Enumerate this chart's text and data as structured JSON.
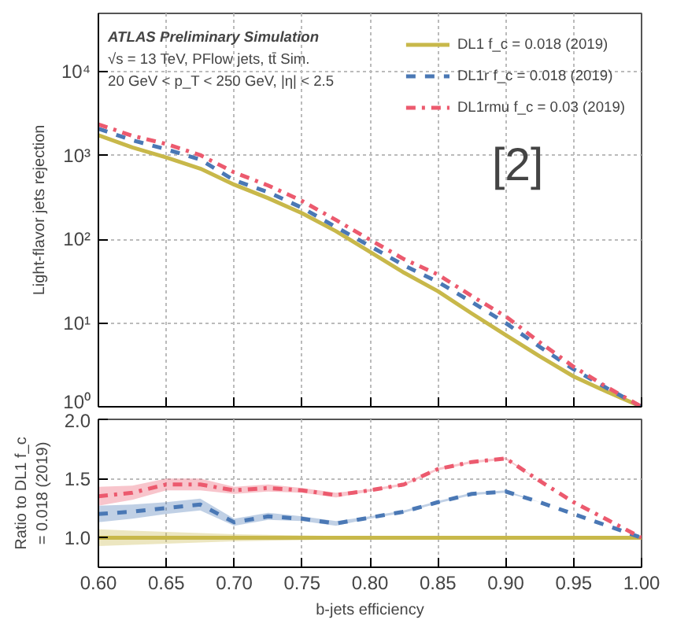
{
  "chart_data": [
    {
      "type": "line",
      "ylabel": "Light-flavor jets rejection",
      "log": "y",
      "grid": true,
      "legend": "top right",
      "tick_labels": "y",
      "x": [
        0.6,
        0.625,
        0.65,
        0.675,
        0.7,
        0.725,
        0.75,
        0.775,
        0.8,
        0.825,
        0.85,
        0.875,
        0.9,
        0.925,
        0.95,
        0.975,
        1.0
      ],
      "xlim": [
        0.6,
        1.0
      ],
      "xticks": [
        {
          "value": 0.6,
          "label": null
        },
        {
          "value": 0.65,
          "label": null
        },
        {
          "value": 0.7,
          "label": null
        },
        {
          "value": 0.75,
          "label": null
        },
        {
          "value": 0.8,
          "label": null
        },
        {
          "value": 0.85,
          "label": null
        },
        {
          "value": 0.9,
          "label": null
        },
        {
          "value": 0.95,
          "label": null
        },
        {
          "value": 1.0,
          "label": null
        }
      ],
      "ylim": [
        1,
        50000
      ],
      "yticks": [
        {
          "value": 1,
          "label": "10⁰"
        },
        {
          "value": 10,
          "label": "10¹"
        },
        {
          "value": 100,
          "label": "10²"
        },
        {
          "value": 1000,
          "label": "10³"
        },
        {
          "value": 10000,
          "label": "10⁴"
        }
      ],
      "annotations": [
        "ATLAS Preliminary Simulation",
        "√s = 13 TeV, PFlow jets, tt̄ Sim.",
        "20 GeV < p_T < 250 GeV, |η| < 2.5",
        "[2]"
      ],
      "series": [
        {
          "name": "DL1 f_c = 0.018 (2019)",
          "color": "#c8b84a",
          "line_style": "solid",
          "values": [
            1750,
            1250,
            950,
            700,
            450,
            310,
            205,
            125,
            71,
            40,
            24,
            13,
            7.2,
            4,
            2.3,
            1.5,
            1.0
          ]
        },
        {
          "name": "DL1r f_c = 0.018 (2019)",
          "color": "#4a78b5",
          "line_style": "dashed",
          "values": [
            2100,
            1525,
            1188,
            896,
            509,
            366,
            238,
            140,
            83,
            49,
            31,
            17.8,
            10,
            5.2,
            2.8,
            1.65,
            1.0
          ]
        },
        {
          "name": "DL1rmu f_c = 0.03 (2019)",
          "color": "#ec5a6e",
          "line_style": "dashdot",
          "values": [
            2363,
            1725,
            1378,
            1015,
            630,
            440,
            287,
            170,
            99,
            58,
            38,
            21,
            12,
            5.9,
            3.0,
            1.7,
            1.0
          ]
        }
      ]
    },
    {
      "type": "line",
      "ylabel": "Ratio to DL1 f_c = 0.018 (2019)",
      "xlabel": "b-jets efficiency",
      "grid": true,
      "x": [
        0.6,
        0.625,
        0.65,
        0.675,
        0.7,
        0.725,
        0.75,
        0.775,
        0.8,
        0.825,
        0.85,
        0.875,
        0.9,
        0.925,
        0.95,
        0.975,
        1.0
      ],
      "xlim": [
        0.6,
        1.0
      ],
      "xticks": [
        {
          "value": 0.6,
          "label": "0.60"
        },
        {
          "value": 0.65,
          "label": "0.65"
        },
        {
          "value": 0.7,
          "label": "0.70"
        },
        {
          "value": 0.75,
          "label": "0.75"
        },
        {
          "value": 0.8,
          "label": "0.80"
        },
        {
          "value": 0.85,
          "label": "0.85"
        },
        {
          "value": 0.9,
          "label": "0.90"
        },
        {
          "value": 0.95,
          "label": "0.95"
        },
        {
          "value": 1.0,
          "label": "1.00"
        }
      ],
      "ylim": [
        0.75,
        2.0
      ],
      "yticks": [
        {
          "value": 1.0,
          "label": "1.0"
        },
        {
          "value": 1.5,
          "label": "1.5"
        },
        {
          "value": 2.0,
          "label": "2.0"
        }
      ],
      "series": [
        {
          "color": "#c8b84a",
          "line_style": "solid",
          "values": [
            1,
            1,
            1,
            1,
            1,
            1,
            1,
            1,
            1,
            1,
            1,
            1,
            1,
            1,
            1,
            1,
            1
          ],
          "lower": [
            0.93,
            0.94,
            0.95,
            0.96,
            0.97,
            0.975,
            0.98,
            0.985,
            0.99,
            0.99,
            0.995,
            0.995,
            0.995,
            1,
            1,
            1,
            1
          ],
          "upper": [
            1.07,
            1.06,
            1.05,
            1.04,
            1.03,
            1.025,
            1.02,
            1.015,
            1.01,
            1.01,
            1.005,
            1.005,
            1.005,
            1,
            1,
            1,
            1
          ]
        },
        {
          "color": "#4a78b5",
          "line_style": "dashed",
          "values": [
            1.2,
            1.22,
            1.25,
            1.28,
            1.13,
            1.18,
            1.16,
            1.12,
            1.17,
            1.22,
            1.3,
            1.37,
            1.39,
            1.3,
            1.2,
            1.1,
            1.0
          ],
          "lower": [
            1.13,
            1.16,
            1.2,
            1.23,
            1.1,
            1.15,
            1.14,
            1.1,
            1.16,
            1.21,
            1.29,
            1.36,
            1.38,
            1.3,
            1.2,
            1.1,
            1.0
          ],
          "upper": [
            1.27,
            1.28,
            1.3,
            1.33,
            1.16,
            1.21,
            1.18,
            1.14,
            1.18,
            1.23,
            1.31,
            1.38,
            1.4,
            1.3,
            1.2,
            1.1,
            1.0
          ]
        },
        {
          "color": "#ec5a6e",
          "line_style": "dashdot",
          "values": [
            1.35,
            1.38,
            1.45,
            1.45,
            1.4,
            1.42,
            1.4,
            1.36,
            1.4,
            1.45,
            1.58,
            1.64,
            1.67,
            1.48,
            1.3,
            1.15,
            1.0
          ],
          "lower": [
            1.27,
            1.32,
            1.4,
            1.4,
            1.37,
            1.39,
            1.38,
            1.34,
            1.39,
            1.44,
            1.57,
            1.63,
            1.66,
            1.48,
            1.3,
            1.15,
            1.0
          ],
          "upper": [
            1.43,
            1.44,
            1.5,
            1.5,
            1.43,
            1.45,
            1.42,
            1.38,
            1.41,
            1.46,
            1.59,
            1.65,
            1.68,
            1.48,
            1.3,
            1.15,
            1.0
          ]
        }
      ]
    }
  ]
}
